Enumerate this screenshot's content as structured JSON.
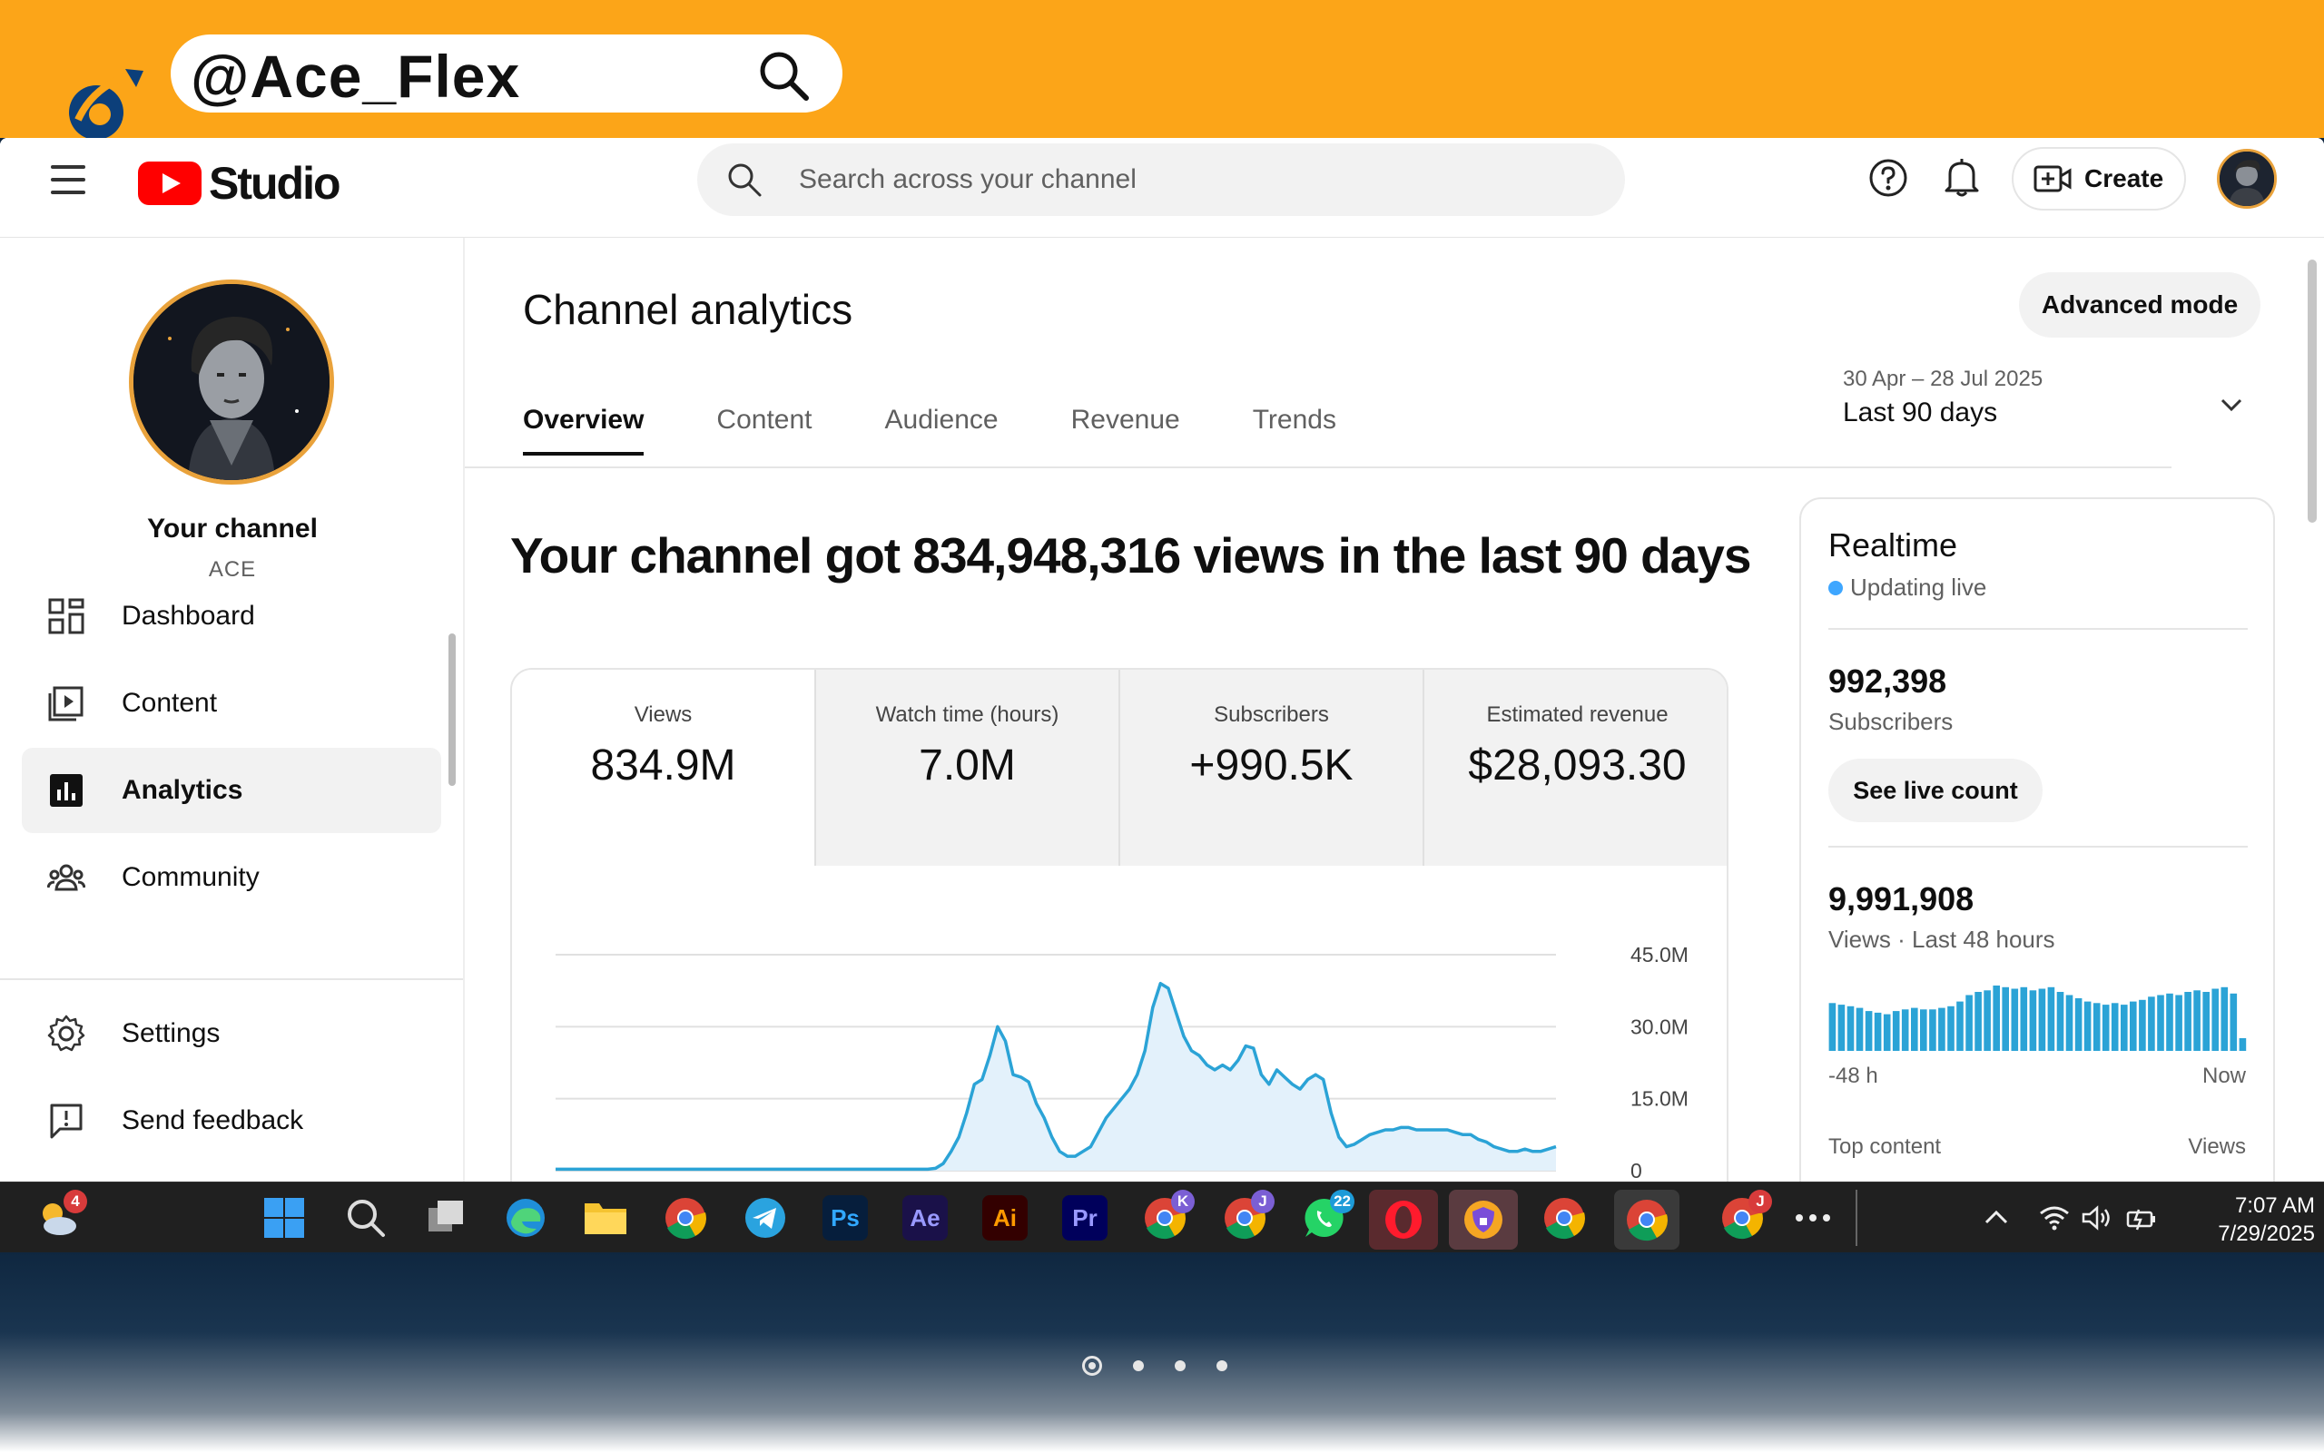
{
  "banner": {
    "handle": "@Ace_Flex"
  },
  "topbar": {
    "logo_text": "Studio",
    "search_placeholder": "Search across your channel",
    "create_label": "Create"
  },
  "sidebar": {
    "channel_name": "Your channel",
    "channel_sub": "ACE",
    "items": [
      {
        "label": "Dashboard",
        "icon": "dashboard-icon"
      },
      {
        "label": "Content",
        "icon": "content-icon"
      },
      {
        "label": "Analytics",
        "icon": "analytics-icon",
        "active": true
      },
      {
        "label": "Community",
        "icon": "community-icon"
      },
      {
        "label": "Settings",
        "icon": "gear-icon"
      },
      {
        "label": "Send feedback",
        "icon": "feedback-icon"
      }
    ]
  },
  "main": {
    "title": "Channel analytics",
    "advanced_label": "Advanced mode",
    "date_range": "30 Apr – 28 Jul 2025",
    "date_label": "Last 90 days",
    "tabs": [
      "Overview",
      "Content",
      "Audience",
      "Revenue",
      "Trends"
    ],
    "headline": "Your channel got 834,948,316 views in the last 90 days",
    "metrics": [
      {
        "label": "Views",
        "value": "834.9M"
      },
      {
        "label": "Watch time (hours)",
        "value": "7.0M"
      },
      {
        "label": "Subscribers",
        "value": "+990.5K"
      },
      {
        "label": "Estimated revenue",
        "value": "$28,093.30"
      }
    ]
  },
  "chart_data": {
    "type": "area",
    "title": "",
    "xlabel": "",
    "ylabel": "",
    "y_ticks": [
      "45.0M",
      "30.0M",
      "15.0M",
      "0"
    ],
    "ylim": [
      0,
      45
    ],
    "y_unit": "M views",
    "values": [
      0.3,
      0.3,
      0.3,
      0.3,
      0.3,
      0.3,
      0.3,
      0.3,
      0.3,
      0.3,
      0.3,
      0.3,
      0.3,
      0.3,
      0.3,
      0.3,
      0.3,
      0.3,
      0.3,
      0.3,
      0.3,
      0.3,
      0.3,
      0.3,
      0.3,
      0.3,
      0.3,
      0.3,
      0.3,
      0.3,
      0.3,
      0.3,
      0.3,
      0.3,
      0.3,
      0.3,
      0.3,
      0.3,
      0.3,
      0.3,
      0.3,
      0.3,
      0.3,
      0.3,
      0.3,
      0.3,
      0.3,
      0.3,
      0.3,
      0.5,
      1.5,
      4,
      7,
      12,
      18,
      19,
      24,
      30,
      27,
      20,
      19.5,
      18.5,
      14,
      11,
      7,
      4,
      3,
      3,
      4,
      5,
      8,
      11,
      13,
      15,
      17,
      20,
      25,
      34,
      39,
      38,
      33,
      28,
      25,
      24,
      22,
      21,
      22,
      21,
      23,
      26,
      25.5,
      20,
      18,
      21,
      19.5,
      18,
      17,
      19,
      20,
      19,
      12,
      7,
      5,
      5.5,
      6.5,
      7.5,
      8,
      8.5,
      8.5,
      9,
      9,
      8.5,
      8.5,
      8.5,
      8.5,
      8.5,
      8,
      7.5,
      7.5,
      6.5,
      6,
      5,
      4.5,
      4,
      4,
      4.5,
      4,
      4,
      4.5,
      5
    ]
  },
  "realtime": {
    "title": "Realtime",
    "live": "Updating live",
    "subscribers": "992,398",
    "subscribers_label": "Subscribers",
    "live_button": "See live count",
    "views": "9,991,908",
    "views_label": "Views · Last 48 hours",
    "bars": [
      30,
      29,
      28,
      27,
      25,
      24,
      23,
      25,
      26,
      27,
      26,
      26,
      27,
      28,
      31,
      35,
      37,
      38,
      41,
      40,
      39,
      40,
      38,
      39,
      40,
      37,
      35,
      33,
      31,
      30,
      29,
      30,
      29,
      31,
      32,
      34,
      35,
      36,
      35,
      37,
      38,
      37,
      39,
      40,
      36,
      8
    ],
    "axis_left": "-48 h",
    "axis_right": "Now",
    "top_content": "Top content",
    "top_views": "Views"
  },
  "taskbar": {
    "weather_badge": "4",
    "whatsapp_badge": "22",
    "chrome_k_badge": "K",
    "chrome_j_badge": "J",
    "chrome_j2_badge": "J",
    "time": "7:07 AM",
    "date": "7/29/2025",
    "app_labels": {
      "ps": "Ps",
      "ae": "Ae",
      "ai": "Ai",
      "pr": "Pr"
    }
  },
  "colors": {
    "banner": "#fca518",
    "accent_red": "#ff0000",
    "chart_line": "#2ba3d6",
    "chart_fill": "#e3f1fb"
  }
}
